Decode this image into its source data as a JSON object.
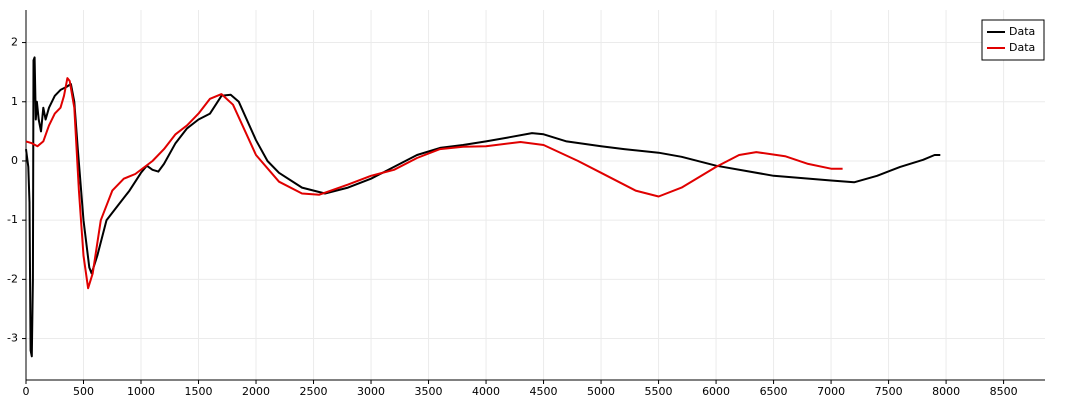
{
  "chart_data": {
    "type": "line",
    "series": [
      {
        "name": "Data",
        "color": "#000000",
        "x": [
          0,
          20,
          30,
          40,
          50,
          60,
          65,
          75,
          85,
          95,
          110,
          130,
          150,
          170,
          200,
          250,
          300,
          350,
          390,
          420,
          450,
          500,
          550,
          570,
          620,
          700,
          800,
          900,
          1000,
          1050,
          1100,
          1150,
          1200,
          1300,
          1400,
          1500,
          1600,
          1700,
          1780,
          1850,
          2000,
          2100,
          2200,
          2400,
          2600,
          2800,
          3000,
          3200,
          3400,
          3600,
          3800,
          4000,
          4200,
          4400,
          4500,
          4700,
          5000,
          5200,
          5500,
          5700,
          6000,
          6500,
          7000,
          7200,
          7400,
          7600,
          7800,
          7900,
          7950
        ],
        "values": [
          0.2,
          -0.1,
          -0.7,
          -3.2,
          -3.3,
          -2,
          1.7,
          1.75,
          0.7,
          1.0,
          0.7,
          0.5,
          0.9,
          0.7,
          0.9,
          1.1,
          1.2,
          1.25,
          1.3,
          1.0,
          0.2,
          -1.0,
          -1.8,
          -1.9,
          -1.6,
          -1.0,
          -0.75,
          -0.5,
          -0.2,
          -0.08,
          -0.15,
          -0.18,
          -0.05,
          0.3,
          0.55,
          0.7,
          0.8,
          1.1,
          1.12,
          1.0,
          0.35,
          0.0,
          -0.2,
          -0.45,
          -0.55,
          -0.45,
          -0.3,
          -0.1,
          0.1,
          0.22,
          0.27,
          0.33,
          0.4,
          0.47,
          0.45,
          0.33,
          0.25,
          0.2,
          0.14,
          0.07,
          -0.08,
          -0.25,
          -0.33,
          -0.36,
          -0.25,
          -0.1,
          0.02,
          0.1,
          0.1
        ]
      },
      {
        "name": "Data",
        "color": "#e00000",
        "x": [
          0,
          50,
          100,
          150,
          200,
          250,
          300,
          330,
          360,
          380,
          420,
          460,
          500,
          540,
          580,
          650,
          750,
          850,
          950,
          1100,
          1200,
          1300,
          1400,
          1500,
          1600,
          1700,
          1800,
          2000,
          2200,
          2400,
          2550,
          2800,
          3000,
          3200,
          3400,
          3600,
          3800,
          4000,
          4300,
          4500,
          4800,
          5000,
          5300,
          5500,
          5700,
          6000,
          6200,
          6350,
          6600,
          6800,
          7000,
          7100
        ],
        "values": [
          0.33,
          0.3,
          0.25,
          0.33,
          0.6,
          0.8,
          0.9,
          1.1,
          1.4,
          1.35,
          0.9,
          -0.5,
          -1.6,
          -2.15,
          -1.9,
          -1.0,
          -0.5,
          -0.3,
          -0.22,
          0.0,
          0.2,
          0.45,
          0.6,
          0.8,
          1.05,
          1.13,
          0.95,
          0.1,
          -0.35,
          -0.55,
          -0.57,
          -0.4,
          -0.25,
          -0.15,
          0.05,
          0.2,
          0.24,
          0.25,
          0.32,
          0.27,
          0.0,
          -0.2,
          -0.5,
          -0.6,
          -0.45,
          -0.1,
          0.1,
          0.15,
          0.08,
          -0.05,
          -0.13,
          -0.13
        ]
      }
    ],
    "xlim": [
      0,
      8860
    ],
    "ylim": [
      -3.7,
      2.55
    ],
    "xticks": [
      0,
      500,
      1000,
      1500,
      2000,
      2500,
      3000,
      3500,
      4000,
      4500,
      5000,
      5500,
      6000,
      6500,
      7000,
      7500,
      8000,
      8500
    ],
    "yticks": [
      -3,
      -2,
      -1,
      0,
      1,
      2
    ],
    "grid": true,
    "legend": "top-right"
  }
}
